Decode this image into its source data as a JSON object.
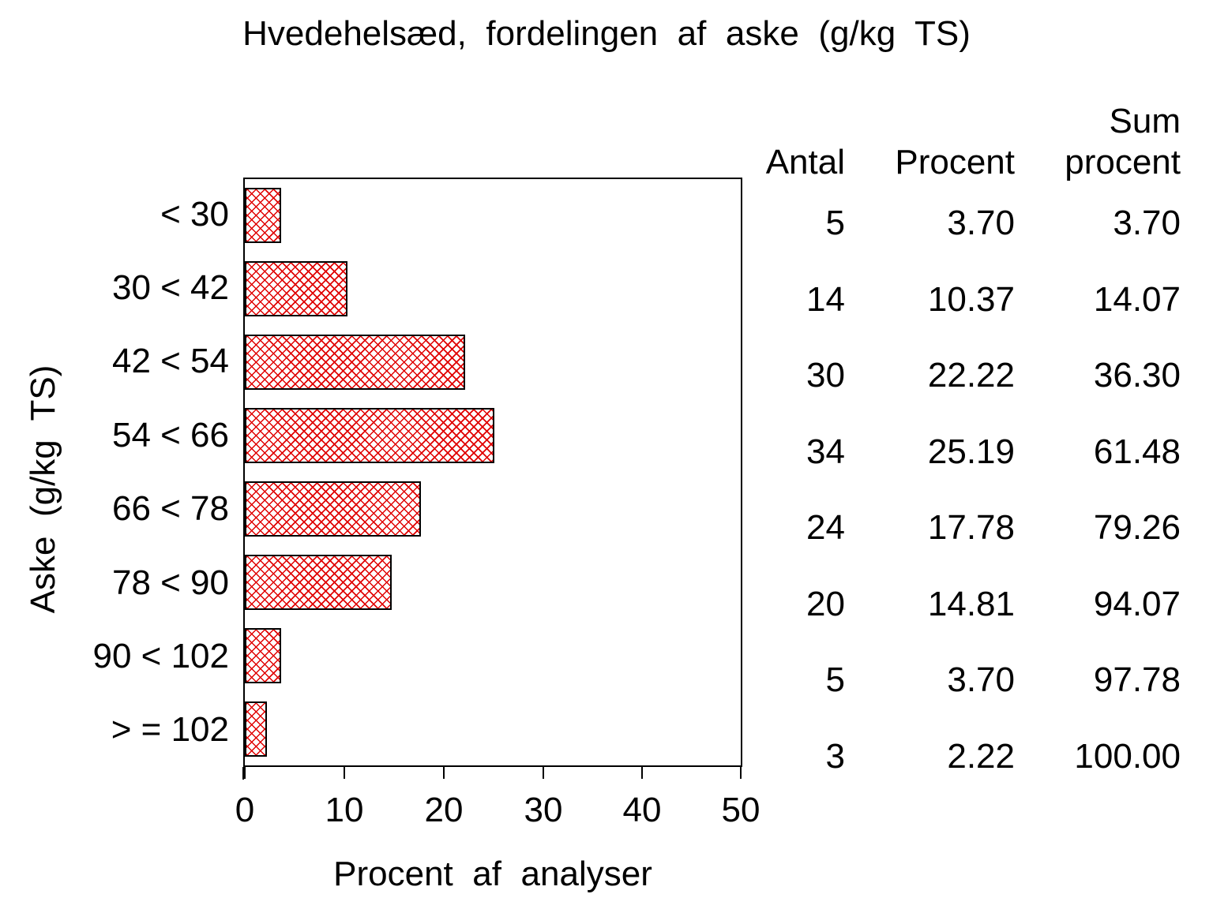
{
  "title": "Hvedehelsæd, fordelingen af aske (g/kg TS)",
  "chart_data": {
    "type": "bar",
    "orientation": "horizontal",
    "title": "Hvedehelsæd, fordelingen af aske (g/kg TS)",
    "categories": [
      "< 30",
      "30 < 42",
      "42 < 54",
      "54 < 66",
      "66 < 78",
      "78 < 90",
      "90 < 102",
      "> = 102"
    ],
    "values": [
      3.7,
      10.37,
      22.22,
      25.19,
      17.78,
      14.81,
      3.7,
      2.22
    ],
    "counts": [
      5,
      14,
      30,
      34,
      24,
      20,
      5,
      3
    ],
    "cumulative_percents": [
      3.7,
      14.07,
      36.3,
      61.48,
      79.26,
      94.07,
      97.78,
      100.0
    ],
    "xlabel": "Procent af analyser",
    "ylabel": "Aske (g/kg TS)",
    "xlim": [
      0,
      50
    ],
    "xticks": [
      "0",
      "10",
      "20",
      "30",
      "40",
      "50"
    ],
    "grid": false,
    "legend": "none",
    "bar_pattern": "red-diagonal-crosshatch",
    "bar_line_color": "#e00000",
    "bar_border_color": "#000000",
    "background_color": "#ffffff",
    "text_color": "#000000"
  },
  "freq_table": {
    "headers": {
      "antal": "Antal",
      "procent": "Procent",
      "sum_line1": "Sum",
      "sum_line2": "procent"
    },
    "rows": [
      {
        "antal": "5",
        "procent": "3.70",
        "sum_procent": "3.70"
      },
      {
        "antal": "14",
        "procent": "10.37",
        "sum_procent": "14.07"
      },
      {
        "antal": "30",
        "procent": "22.22",
        "sum_procent": "36.30"
      },
      {
        "antal": "34",
        "procent": "25.19",
        "sum_procent": "61.48"
      },
      {
        "antal": "24",
        "procent": "17.78",
        "sum_procent": "79.26"
      },
      {
        "antal": "20",
        "procent": "14.81",
        "sum_procent": "94.07"
      },
      {
        "antal": "5",
        "procent": "3.70",
        "sum_procent": "97.78"
      },
      {
        "antal": "3",
        "procent": "2.22",
        "sum_procent": "100.00"
      }
    ]
  }
}
